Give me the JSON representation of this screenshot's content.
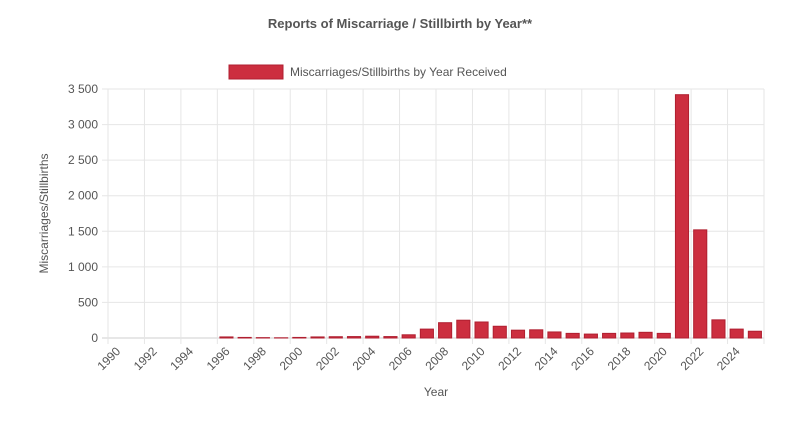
{
  "chart_data": {
    "type": "bar",
    "title": "Reports of Miscarriage / Stillbirth by Year**",
    "xlabel": "Year",
    "ylabel": "Miscarriages/Stillbirths",
    "ylim": [
      0,
      3500
    ],
    "yticks": [
      0,
      500,
      1000,
      1500,
      2000,
      2500,
      3000,
      3500
    ],
    "ytick_labels": [
      "0",
      "500",
      "1 000",
      "1 500",
      "2 000",
      "2 500",
      "3 000",
      "3 500"
    ],
    "xtick_labels": [
      "1990",
      "1992",
      "1994",
      "1996",
      "1998",
      "2000",
      "2002",
      "2004",
      "2006",
      "2008",
      "2010",
      "2012",
      "2014",
      "2016",
      "2018",
      "2020",
      "2022",
      "2024"
    ],
    "categories": [
      "1990",
      "1991",
      "1992",
      "1993",
      "1994",
      "1995",
      "1996",
      "1997",
      "1998",
      "1999",
      "2000",
      "2001",
      "2002",
      "2003",
      "2004",
      "2005",
      "2006",
      "2007",
      "2008",
      "2009",
      "2010",
      "2011",
      "2012",
      "2013",
      "2014",
      "2015",
      "2016",
      "2017",
      "2018",
      "2019",
      "2020",
      "2021",
      "2022",
      "2023",
      "2024",
      "2025"
    ],
    "series": [
      {
        "name": "Miscarriages/Stillbirths by Year Received",
        "color": "#cc2e3f",
        "values": [
          0,
          0,
          0,
          0,
          0,
          0,
          15,
          8,
          5,
          3,
          8,
          15,
          18,
          20,
          25,
          20,
          45,
          125,
          215,
          250,
          225,
          165,
          110,
          115,
          85,
          65,
          55,
          65,
          70,
          80,
          65,
          3420,
          1520,
          255,
          125,
          95
        ]
      }
    ],
    "grid": true,
    "legend_position": "top-center"
  }
}
